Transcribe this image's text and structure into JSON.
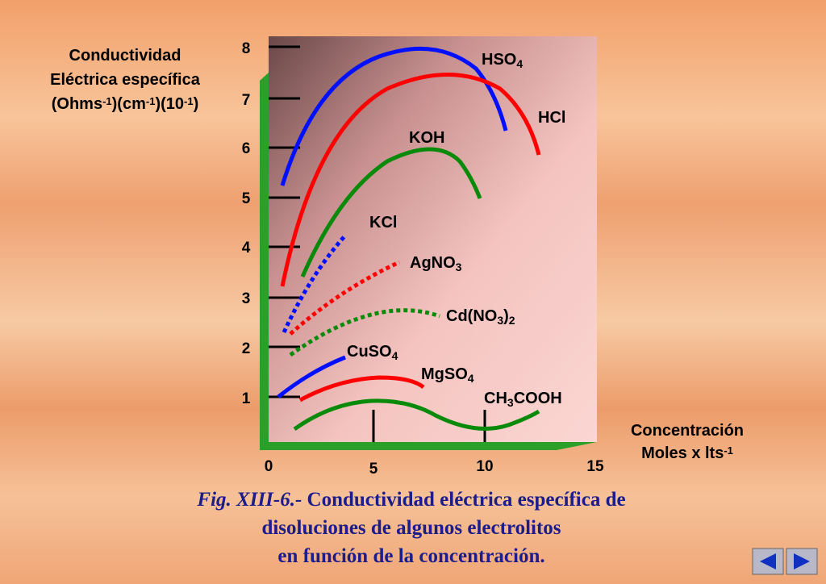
{
  "y_axis": {
    "title": [
      [
        {
          "t": "Conductividad"
        }
      ],
      [
        {
          "t": "Eléctrica específica"
        }
      ],
      [
        {
          "t": "(Ohms"
        },
        {
          "t": "-1",
          "s": "sup"
        },
        {
          "t": ")(cm"
        },
        {
          "t": "-1",
          "s": "sup"
        },
        {
          "t": ")(10"
        },
        {
          "t": "-1",
          "s": "sup"
        },
        {
          "t": ")"
        }
      ]
    ],
    "ticks": [
      "8",
      "7",
      "6",
      "5",
      "4",
      "3",
      "2",
      "1"
    ]
  },
  "x_axis": {
    "title": [
      [
        {
          "t": "Concentración"
        }
      ],
      [
        {
          "t": "Moles x lts"
        },
        {
          "t": "-1",
          "s": "sup"
        }
      ]
    ],
    "ticks": [
      "0",
      "5",
      "10",
      "15"
    ]
  },
  "curves": [
    [
      {
        "t": "HSO"
      },
      {
        "t": "4",
        "s": "sub"
      }
    ],
    [
      {
        "t": "HCl"
      }
    ],
    [
      {
        "t": "KOH"
      }
    ],
    [
      {
        "t": "KCl"
      }
    ],
    [
      {
        "t": "AgNO"
      },
      {
        "t": "3",
        "s": "sub"
      }
    ],
    [
      {
        "t": "Cd(NO"
      },
      {
        "t": "3",
        "s": "sub"
      },
      {
        "t": ")"
      },
      {
        "t": "2",
        "s": "sub"
      }
    ],
    [
      {
        "t": "CuSO"
      },
      {
        "t": "4",
        "s": "sub"
      }
    ],
    [
      {
        "t": "MgSO"
      },
      {
        "t": "4",
        "s": "sub"
      }
    ],
    [
      {
        "t": "CH"
      },
      {
        "t": "3",
        "s": "sub"
      },
      {
        "t": "COOH"
      }
    ]
  ],
  "caption": [
    [
      {
        "t": "Fig. XIII-6.- ",
        "s": "it"
      },
      {
        "t": "Conductividad eléctrica específica de"
      }
    ],
    [
      {
        "t": "disoluciones de algunos electrolitos"
      }
    ],
    [
      {
        "t": "en función de la concentración."
      }
    ]
  ]
}
